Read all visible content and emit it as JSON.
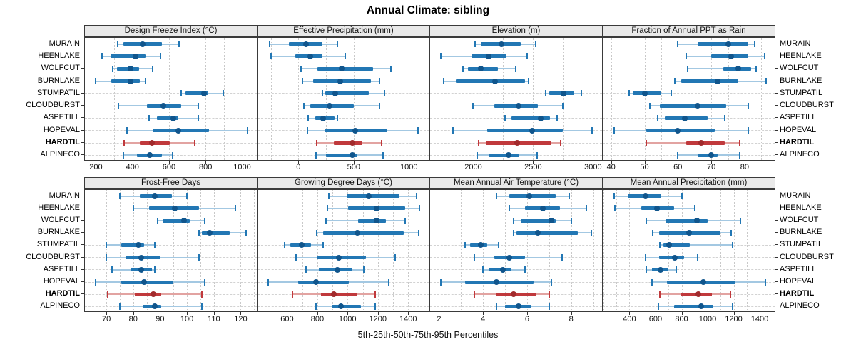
{
  "title": "Annual Climate: sibling",
  "caption": "5th-25th-50th-75th-95th Percentiles",
  "stations": [
    "MURAIN",
    "HEENLAKE",
    "WOLFCUT",
    "BURNLAKE",
    "STUMPATIL",
    "CLOUDBURST",
    "ASPETILL",
    "HOPEVAL",
    "HARDTIL",
    "ALPINECO"
  ],
  "highlight_station": "HARDTIL",
  "colors": {
    "blue_main": "#2277b4",
    "blue_light": "#a3c8e2",
    "blue_dark": "#10558c",
    "red_main": "#c0393c",
    "red_light": "#e2a3a1",
    "red_dark": "#a12a2c",
    "strip_bg": "#e9e9e9",
    "panel_border": "#3a3a3a",
    "grid": "#c9c9c9"
  },
  "chart_data": [
    {
      "type": "interval",
      "title": "Design Freeze Index (°C)",
      "row": 0,
      "col": 0,
      "xlim": [
        140,
        1080
      ],
      "ticks": [
        200,
        400,
        600,
        800,
        1000
      ],
      "minor_step": 100,
      "percentiles": [
        5,
        25,
        50,
        75,
        95
      ],
      "values": [
        [
          320,
          350,
          455,
          560,
          655
        ],
        [
          235,
          280,
          415,
          470,
          555
        ],
        [
          290,
          315,
          390,
          435,
          510
        ],
        [
          200,
          285,
          390,
          440,
          470
        ],
        [
          665,
          690,
          790,
          815,
          895
        ],
        [
          325,
          480,
          570,
          665,
          760
        ],
        [
          490,
          535,
          625,
          650,
          760
        ],
        [
          370,
          510,
          650,
          820,
          1030
        ],
        [
          355,
          440,
          505,
          605,
          740
        ],
        [
          350,
          425,
          495,
          560,
          620
        ]
      ]
    },
    {
      "type": "interval",
      "title": "Effective Precipitation (mm)",
      "row": 0,
      "col": 1,
      "xlim": [
        -370,
        1185
      ],
      "ticks": [
        0,
        500,
        1000
      ],
      "minor_step": 250,
      "percentiles": [
        5,
        25,
        50,
        75,
        95
      ],
      "values": [
        [
          -260,
          -85,
          70,
          215,
          355
        ],
        [
          -245,
          -30,
          110,
          215,
          425
        ],
        [
          25,
          170,
          390,
          675,
          835
        ],
        [
          35,
          130,
          380,
          655,
          735
        ],
        [
          215,
          245,
          330,
          635,
          775
        ],
        [
          50,
          110,
          280,
          500,
          730
        ],
        [
          90,
          155,
          225,
          330,
          355
        ],
        [
          80,
          235,
          515,
          805,
          1080
        ],
        [
          165,
          320,
          490,
          580,
          750
        ],
        [
          160,
          250,
          485,
          535,
          765
        ]
      ]
    },
    {
      "type": "interval",
      "title": "Elevation (m)",
      "row": 0,
      "col": 2,
      "xlim": [
        1640,
        3075
      ],
      "ticks": [
        2000,
        2500,
        3000
      ],
      "minor_step": 250,
      "percentiles": [
        5,
        25,
        50,
        75,
        95
      ],
      "values": [
        [
          2015,
          2065,
          2235,
          2395,
          2520
        ],
        [
          1730,
          1985,
          2130,
          2275,
          2450
        ],
        [
          1915,
          1955,
          2065,
          2205,
          2355
        ],
        [
          1750,
          1855,
          2180,
          2430,
          2460
        ],
        [
          2605,
          2635,
          2755,
          2845,
          2900
        ],
        [
          1995,
          2175,
          2380,
          2540,
          2745
        ],
        [
          2265,
          2320,
          2560,
          2640,
          2700
        ],
        [
          1830,
          2115,
          2490,
          2750,
          2990
        ],
        [
          2045,
          2105,
          2365,
          2650,
          2730
        ],
        [
          2035,
          2125,
          2295,
          2385,
          2530
        ]
      ]
    },
    {
      "type": "interval",
      "title": "Fraction of Annual PPT as Rain",
      "row": 0,
      "col": 3,
      "xlim": [
        37.5,
        89
      ],
      "ticks": [
        40,
        50,
        60,
        70,
        80
      ],
      "minor_step": 5,
      "percentiles": [
        5,
        25,
        50,
        75,
        95
      ],
      "values": [
        [
          60,
          66,
          75,
          81,
          83
        ],
        [
          62.5,
          70,
          76,
          81,
          86
        ],
        [
          63,
          73.5,
          78,
          82,
          83.5
        ],
        [
          59,
          61,
          72,
          78,
          86.5
        ],
        [
          45.5,
          46.5,
          50,
          55,
          58
        ],
        [
          51.5,
          54.5,
          66,
          74.5,
          81
        ],
        [
          54,
          56,
          62,
          69,
          74
        ],
        [
          41,
          50.5,
          60,
          71,
          81
        ],
        [
          50.5,
          62.5,
          67,
          74,
          78.5
        ],
        [
          60,
          66,
          70,
          72,
          78.5
        ]
      ]
    },
    {
      "type": "interval",
      "title": "Frost-Free Days",
      "row": 1,
      "col": 0,
      "xlim": [
        62,
        126
      ],
      "ticks": [
        70,
        80,
        90,
        100,
        110,
        120
      ],
      "minor_step": 5,
      "percentiles": [
        5,
        25,
        50,
        75,
        95
      ],
      "values": [
        [
          75,
          82.5,
          88,
          94.5,
          100
        ],
        [
          80,
          86,
          95.5,
          104.5,
          118
        ],
        [
          89,
          91,
          99,
          101,
          106.5
        ],
        [
          104.5,
          105.5,
          108.5,
          116,
          122
        ],
        [
          70,
          75.5,
          82,
          84,
          88
        ],
        [
          70,
          77,
          83,
          90,
          104.5
        ],
        [
          72,
          79,
          83,
          87,
          88
        ],
        [
          66,
          75.5,
          84,
          95,
          106.5
        ],
        [
          70.5,
          80.5,
          87.5,
          90.5,
          105.5
        ],
        [
          75,
          83.5,
          88,
          90.5,
          105.5
        ]
      ]
    },
    {
      "type": "interval",
      "title": "Growing Degree Days (°C)",
      "row": 1,
      "col": 1,
      "xlim": [
        405,
        1540
      ],
      "ticks": [
        600,
        800,
        1000,
        1200,
        1400
      ],
      "minor_step": 100,
      "percentiles": [
        5,
        25,
        50,
        75,
        95
      ],
      "values": [
        [
          875,
          995,
          1140,
          1340,
          1455
        ],
        [
          865,
          1005,
          1190,
          1380,
          1475
        ],
        [
          855,
          1070,
          1190,
          1255,
          1380
        ],
        [
          795,
          840,
          1065,
          1370,
          1470
        ],
        [
          585,
          620,
          695,
          760,
          840
        ],
        [
          660,
          795,
          940,
          1120,
          1315
        ],
        [
          725,
          810,
          930,
          1025,
          1105
        ],
        [
          475,
          675,
          790,
          1010,
          1270
        ],
        [
          635,
          825,
          910,
          1065,
          1180
        ],
        [
          790,
          895,
          955,
          1090,
          1180
        ]
      ]
    },
    {
      "type": "interval",
      "title": "Mean Annual Air Temperature (°C)",
      "row": 1,
      "col": 2,
      "xlim": [
        1.6,
        9.4
      ],
      "ticks": [
        2,
        4,
        6,
        8
      ],
      "minor_step": 1,
      "percentiles": [
        5,
        25,
        50,
        75,
        95
      ],
      "values": [
        [
          4.6,
          5.2,
          6.1,
          7.3,
          7.9
        ],
        [
          5.2,
          5.9,
          6.7,
          7.5,
          8.7
        ],
        [
          5.4,
          5.7,
          7.1,
          7.3,
          8.0
        ],
        [
          5.4,
          5.5,
          6.5,
          8.3,
          8.9
        ],
        [
          3.2,
          3.4,
          3.9,
          4.2,
          4.7
        ],
        [
          3.6,
          4.5,
          5.2,
          5.9,
          7.6
        ],
        [
          4.0,
          4.3,
          4.9,
          5.3,
          5.9
        ],
        [
          2.1,
          3.2,
          4.6,
          6.3,
          7.1
        ],
        [
          3.6,
          4.6,
          5.4,
          6.4,
          7.0
        ],
        [
          4.6,
          5.0,
          5.6,
          6.2,
          7.0
        ]
      ]
    },
    {
      "type": "interval",
      "title": "Mean Annual Precipitation (mm)",
      "row": 1,
      "col": 3,
      "xlim": [
        195,
        1515
      ],
      "ticks": [
        400,
        600,
        800,
        1000,
        1200,
        1400
      ],
      "minor_step": 100,
      "percentiles": [
        5,
        25,
        50,
        75,
        95
      ],
      "values": [
        [
          280,
          385,
          525,
          645,
          800
        ],
        [
          290,
          490,
          610,
          745,
          900
        ],
        [
          530,
          675,
          920,
          1000,
          1250
        ],
        [
          580,
          630,
          855,
          1100,
          1180
        ],
        [
          635,
          660,
          705,
          865,
          1190
        ],
        [
          525,
          630,
          750,
          820,
          925
        ],
        [
          530,
          575,
          640,
          700,
          760
        ],
        [
          575,
          690,
          965,
          1215,
          1445
        ],
        [
          635,
          790,
          930,
          1035,
          1175
        ],
        [
          620,
          740,
          950,
          1045,
          1190
        ]
      ]
    }
  ]
}
